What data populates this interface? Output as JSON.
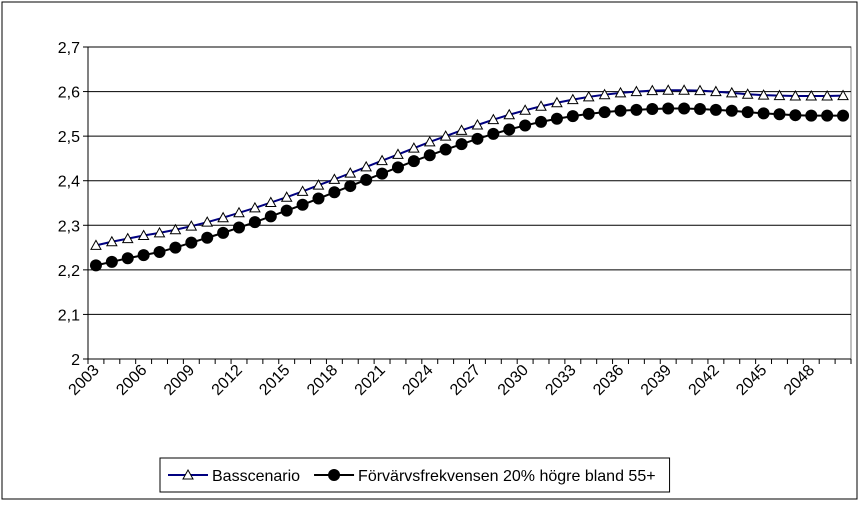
{
  "chart_data": {
    "type": "line",
    "categories": [
      "2003",
      null,
      null,
      "2006",
      null,
      null,
      "2009",
      null,
      null,
      "2012",
      null,
      null,
      "2015",
      null,
      null,
      "2018",
      null,
      null,
      "2021",
      null,
      null,
      "2024",
      null,
      null,
      "2027",
      null,
      null,
      "2030",
      null,
      null,
      "2033",
      null,
      null,
      "2036",
      null,
      null,
      "2039",
      null,
      null,
      "2042",
      null,
      null,
      "2045",
      null,
      null,
      "2048",
      null,
      null
    ],
    "series": [
      {
        "name": "Basscenario",
        "color": "#000080",
        "marker": "triangle",
        "values": [
          2.255,
          2.263,
          2.27,
          2.277,
          2.283,
          2.29,
          2.298,
          2.307,
          2.317,
          2.328,
          2.339,
          2.351,
          2.363,
          2.376,
          2.39,
          2.403,
          2.417,
          2.431,
          2.445,
          2.459,
          2.473,
          2.487,
          2.5,
          2.513,
          2.525,
          2.537,
          2.548,
          2.558,
          2.567,
          2.575,
          2.582,
          2.588,
          2.593,
          2.597,
          2.6,
          2.602,
          2.603,
          2.603,
          2.602,
          2.6,
          2.597,
          2.594,
          2.592,
          2.591,
          2.59,
          2.59,
          2.59,
          2.591
        ]
      },
      {
        "name": "Förvärvsfrekvensen 20% högre bland 55+",
        "color": "#000000",
        "marker": "circle",
        "values": [
          2.21,
          2.218,
          2.226,
          2.233,
          2.24,
          2.25,
          2.261,
          2.272,
          2.283,
          2.295,
          2.307,
          2.32,
          2.333,
          2.346,
          2.36,
          2.374,
          2.388,
          2.402,
          2.416,
          2.43,
          2.444,
          2.457,
          2.47,
          2.482,
          2.494,
          2.505,
          2.515,
          2.524,
          2.532,
          2.539,
          2.545,
          2.55,
          2.554,
          2.557,
          2.559,
          2.561,
          2.562,
          2.562,
          2.561,
          2.559,
          2.557,
          2.554,
          2.551,
          2.549,
          2.547,
          2.546,
          2.546,
          2.546
        ]
      }
    ],
    "ylim": [
      2,
      2.7
    ],
    "yticks": [
      2,
      {
        "value": 2.1,
        "label": "2,1"
      },
      {
        "value": 2.2,
        "label": "2,2"
      },
      {
        "value": 2.3,
        "label": "2,3"
      },
      {
        "value": 2.4,
        "label": "2,4"
      },
      {
        "value": 2.5,
        "label": "2,5"
      },
      {
        "value": 2.6,
        "label": "2,6"
      },
      {
        "value": 2.7,
        "label": "2,7"
      }
    ],
    "grid": true,
    "legend": "bottom"
  }
}
